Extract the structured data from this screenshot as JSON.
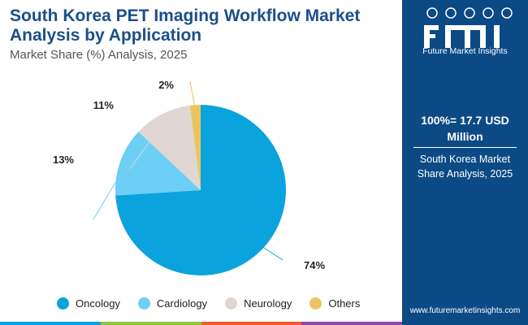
{
  "header": {
    "title": "South Korea PET Imaging Workflow Market Analysis by Application",
    "subtitle": "Market Share (%) Analysis, 2025"
  },
  "chart_data": {
    "type": "pie",
    "title": "South Korea PET Imaging Workflow Market Analysis by Application",
    "subtitle": "Market Share (%) Analysis, 2025",
    "unit": "%",
    "slices": [
      {
        "label": "Oncology",
        "value": 74,
        "value_label": "74%",
        "color": "#0aa3dd"
      },
      {
        "label": "Cardiology",
        "value": 13,
        "value_label": "13%",
        "color": "#6dcff6"
      },
      {
        "label": "Neurology",
        "value": 11,
        "value_label": "11%",
        "color": "#e0d6d2"
      },
      {
        "label": "Others",
        "value": 2,
        "value_label": "2%",
        "color": "#ecc45f"
      }
    ],
    "legend_position": "bottom"
  },
  "sidebar": {
    "brand": "Future Market Insights",
    "total": "100%= 17.7 USD Million",
    "description": "South Korea Market Share Analysis, 2025",
    "url": "www.futuremarketinsights.com"
  },
  "colors": {
    "title": "#1b4f8a",
    "sidebar_bg": "#0c4a86",
    "bar_segments": [
      "#0aa3dd",
      "#8dc63f",
      "#f15a29",
      "#8e44ad"
    ]
  }
}
